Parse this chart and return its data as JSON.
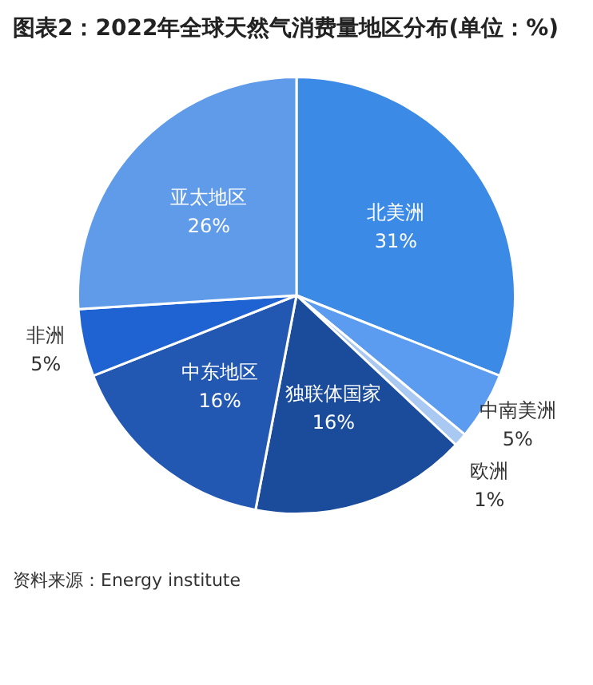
{
  "chart_data": {
    "type": "pie",
    "title": "图表2：2022年全球天然气消费量地区分布(单位：%)",
    "categories": [
      "北美洲",
      "中南美洲",
      "欧洲",
      "独联体国家",
      "中东地区",
      "非洲",
      "亚太地区"
    ],
    "values": [
      31,
      5,
      1,
      16,
      16,
      5,
      26
    ],
    "value_labels": [
      "31%",
      "5%",
      "1%",
      "16%",
      "16%",
      "5%",
      "26%"
    ],
    "colors": [
      "#3a8ae6",
      "#5c9cf0",
      "#a9c9f2",
      "#1b4c9c",
      "#2358b2",
      "#1f63d2",
      "#5f9be9"
    ],
    "legend": false,
    "annotations": [
      "资料来源：Energy institute"
    ]
  }
}
